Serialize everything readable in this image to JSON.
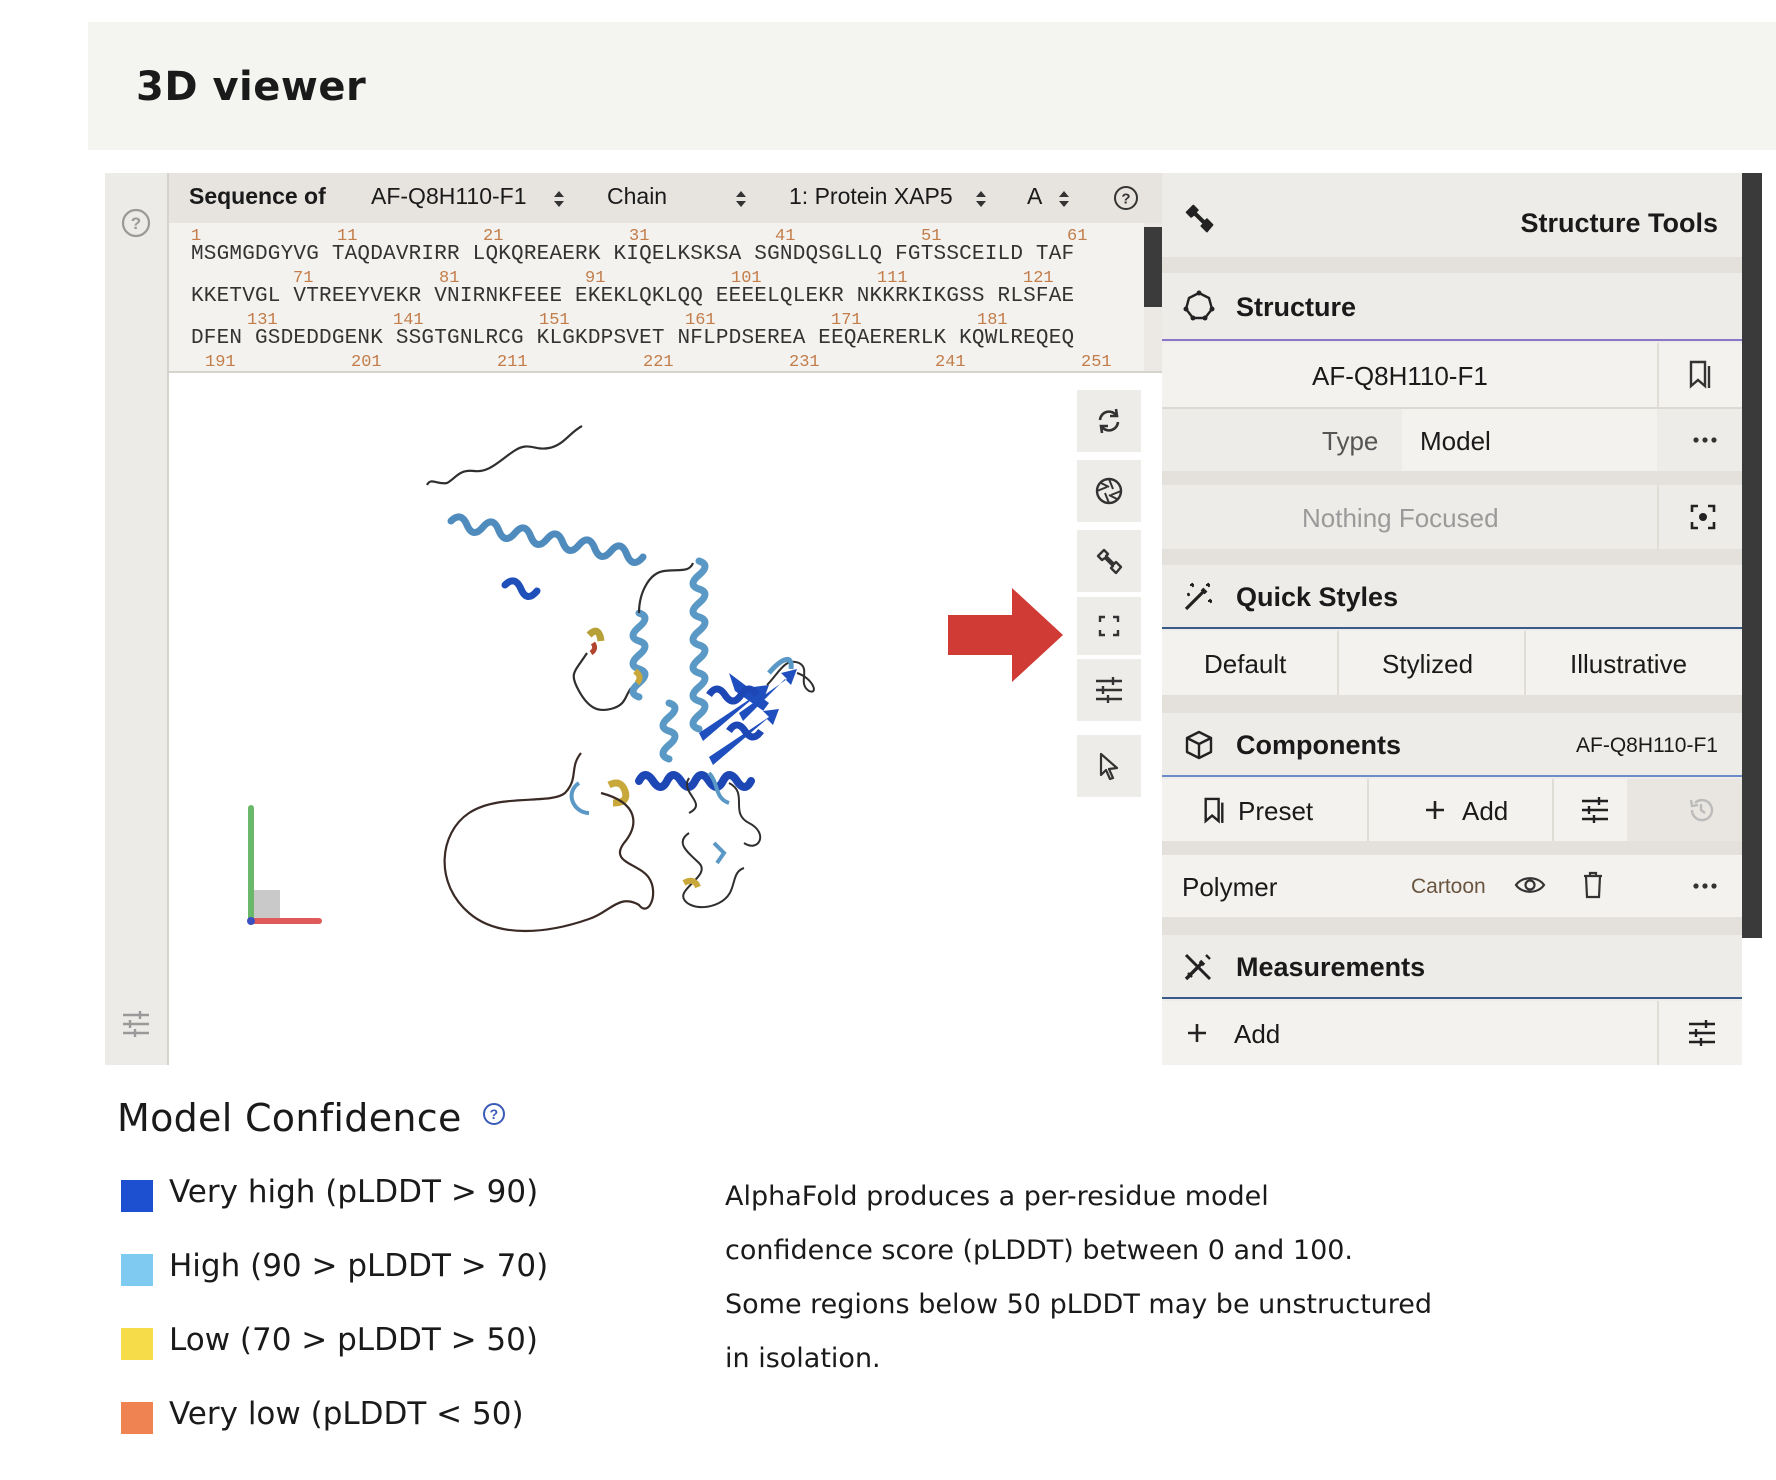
{
  "header": {
    "title": "3D viewer"
  },
  "sequence": {
    "label": "Sequence of",
    "entry": "AF-Q8H110-F1",
    "mode": "Chain",
    "entity": "1: Protein XAP5",
    "chain": "A",
    "rows": [
      {
        "numbers": [
          "1",
          "11",
          "21",
          "31",
          "41",
          "51",
          "61"
        ],
        "line": "MSGMGDGYVG TAQDAVRIRR LQKQREAERK KIQELKSKSA SGNDQSGLLQ FGTSSCEILD TAF"
      },
      {
        "numbers": [
          "71",
          "81",
          "91",
          "101",
          "111",
          "121"
        ],
        "line": "KKETVGL VTREEYVEKR VNIRNKFEEE EKEKLQKLQQ EEEELQLEKR NKKRKIKGSS RLSFAE"
      },
      {
        "numbers": [
          "131",
          "141",
          "151",
          "161",
          "171",
          "181"
        ],
        "line": "DFEN GSDEDDGENK SSGTGNLRCG KLGKDPSVET NFLPDSEREA EEQAERERLK KQWLREQEQ"
      },
      {
        "numbers": [
          "191",
          "201",
          "211",
          "221",
          "231",
          "241",
          "251"
        ],
        "line": ""
      }
    ]
  },
  "viewer_tools": [
    {
      "name": "reset-camera-icon"
    },
    {
      "name": "screenshot-icon"
    },
    {
      "name": "wrench-icon"
    },
    {
      "name": "expand-icon"
    },
    {
      "name": "settings-sliders-icon"
    },
    {
      "name": "selection-cursor-icon"
    }
  ],
  "tools_panel": {
    "title": "Structure Tools",
    "structure": {
      "heading": "Structure",
      "entry": "AF-Q8H110-F1",
      "type_label": "Type",
      "type_value": "Model",
      "focus": "Nothing Focused"
    },
    "quick_styles": {
      "heading": "Quick Styles",
      "options": [
        "Default",
        "Stylized",
        "Illustrative"
      ]
    },
    "components": {
      "heading": "Components",
      "entry": "AF-Q8H110-F1",
      "preset": "Preset",
      "add": "Add",
      "polymer": "Polymer",
      "repr": "Cartoon"
    },
    "measurements": {
      "heading": "Measurements",
      "add": "Add"
    }
  },
  "confidence": {
    "title": "Model Confidence",
    "legend": [
      {
        "label": "Very high (pLDDT > 90)",
        "color": "#1d4fd1"
      },
      {
        "label": "High (90 > pLDDT > 70)",
        "color": "#7fcaf0"
      },
      {
        "label": "Low (70 > pLDDT > 50)",
        "color": "#f7dc4a"
      },
      {
        "label": "Very low (pLDDT < 50)",
        "color": "#ef8452"
      }
    ],
    "description": [
      "AlphaFold produces a per-residue model",
      "confidence score (pLDDT) between 0 and 100.",
      "Some regions below 50 pLDDT may be unstructured",
      "in isolation."
    ]
  },
  "colors": {
    "very_high": "#1d4fd1",
    "high": "#5b9cc9",
    "low": "#d4b33a",
    "very_low": "#c8553a",
    "arrow": "#d03b35"
  }
}
